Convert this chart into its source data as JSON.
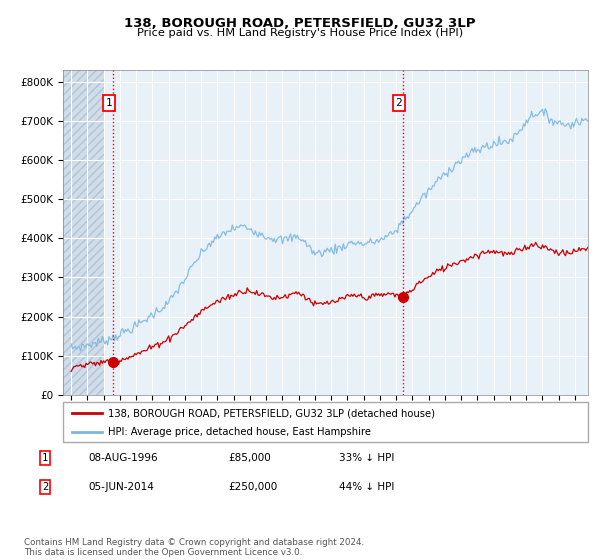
{
  "title1": "138, BOROUGH ROAD, PETERSFIELD, GU32 3LP",
  "title2": "Price paid vs. HM Land Registry's House Price Index (HPI)",
  "ytick_labels": [
    "£0",
    "£100K",
    "£200K",
    "£300K",
    "£400K",
    "£500K",
    "£600K",
    "£700K",
    "£800K"
  ],
  "yticks": [
    0,
    100000,
    200000,
    300000,
    400000,
    500000,
    600000,
    700000,
    800000
  ],
  "hpi_color": "#7ab8e0",
  "price_color": "#cc0000",
  "marker1_year": 1996.58,
  "marker1_price": 85000,
  "marker2_year": 2014.42,
  "marker2_price": 250000,
  "legend_entry1": "138, BOROUGH ROAD, PETERSFIELD, GU32 3LP (detached house)",
  "legend_entry2": "HPI: Average price, detached house, East Hampshire",
  "row1": [
    "1",
    "08-AUG-1996",
    "£85,000",
    "33% ↓ HPI"
  ],
  "row2": [
    "2",
    "05-JUN-2014",
    "£250,000",
    "44% ↓ HPI"
  ],
  "footer": "Contains HM Land Registry data © Crown copyright and database right 2024.\nThis data is licensed under the Open Government Licence v3.0.",
  "plot_bg": "#e8f0f8",
  "hatch_bg": "#d0dce8",
  "xmin": 1993.5,
  "xmax": 2025.8,
  "ylim_max": 830000
}
